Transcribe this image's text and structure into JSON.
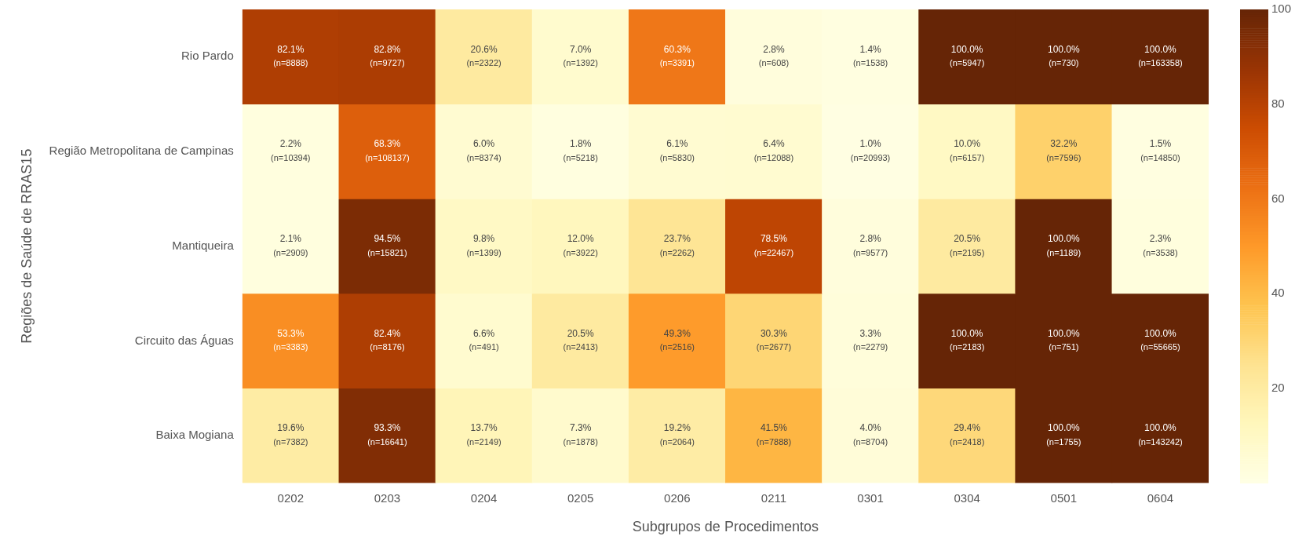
{
  "chart_data": {
    "type": "heatmap",
    "xlabel": "Subgrupos de Procedimentos",
    "ylabel": "Regiões de Saúde de RRAS15",
    "categories": [
      "0202",
      "0203",
      "0204",
      "0205",
      "0206",
      "0211",
      "0301",
      "0304",
      "0501",
      "0604"
    ],
    "y_categories": [
      "Rio Pardo",
      "Região Metropolitana de Campinas",
      "Mantiqueira",
      "Circuito das Águas",
      "Baixa Mogiana"
    ],
    "cells": [
      [
        82.1,
        82.8,
        20.6,
        7.0,
        60.3,
        2.8,
        1.4,
        100.0,
        100.0,
        100.0
      ],
      [
        2.2,
        68.3,
        6.0,
        1.8,
        6.1,
        6.4,
        1.0,
        10.0,
        32.2,
        1.5
      ],
      [
        2.1,
        94.5,
        9.8,
        12.0,
        23.7,
        78.5,
        2.8,
        20.5,
        100.0,
        2.3
      ],
      [
        53.3,
        82.4,
        6.6,
        20.5,
        49.3,
        30.3,
        3.3,
        100.0,
        100.0,
        100.0
      ],
      [
        19.6,
        93.3,
        13.7,
        7.3,
        19.2,
        41.5,
        4.0,
        29.4,
        100.0,
        100.0
      ]
    ],
    "cell_labels": [
      [
        "82.1%\n(n=8888)",
        "82.8%\n(n=9727)",
        "20.6%\n(n=2322)",
        "7.0%\n(n=1392)",
        "60.3%\n(n=3391)",
        "2.8%\n(n=608)",
        "1.4%\n(n=1538)",
        "100.0%\n(n=5947)",
        "100.0%\n(n=730)",
        "100.0%\n(n=163358)"
      ],
      [
        "2.2%\n(n=10394)",
        "68.3%\n(n=108137)",
        "6.0%\n(n=8374)",
        "1.8%\n(n=5218)",
        "6.1%\n(n=5830)",
        "6.4%\n(n=12088)",
        "1.0%\n(n=20993)",
        "10.0%\n(n=6157)",
        "32.2%\n(n=7596)",
        "1.5%\n(n=14850)"
      ],
      [
        "2.1%\n(n=2909)",
        "94.5%\n(n=15821)",
        "9.8%\n(n=1399)",
        "12.0%\n(n=3922)",
        "23.7%\n(n=2262)",
        "78.5%\n(n=22467)",
        "2.8%\n(n=9577)",
        "20.5%\n(n=2195)",
        "100.0%\n(n=1189)",
        "2.3%\n(n=3538)"
      ],
      [
        "53.3%\n(n=3383)",
        "82.4%\n(n=8176)",
        "6.6%\n(n=491)",
        "20.5%\n(n=2413)",
        "49.3%\n(n=2516)",
        "30.3%\n(n=2677)",
        "3.3%\n(n=2279)",
        "100.0%\n(n=2183)",
        "100.0%\n(n=751)",
        "100.0%\n(n=55665)"
      ],
      [
        "19.6%\n(n=7382)",
        "93.3%\n(n=16641)",
        "13.7%\n(n=2149)",
        "7.3%\n(n=1878)",
        "19.2%\n(n=2064)",
        "41.5%\n(n=7888)",
        "4.0%\n(n=8704)",
        "29.4%\n(n=2418)",
        "100.0%\n(n=1755)",
        "100.0%\n(n=143242)"
      ]
    ],
    "clim": [
      0,
      100
    ],
    "cticks": [
      20,
      40,
      60,
      80,
      100
    ]
  }
}
